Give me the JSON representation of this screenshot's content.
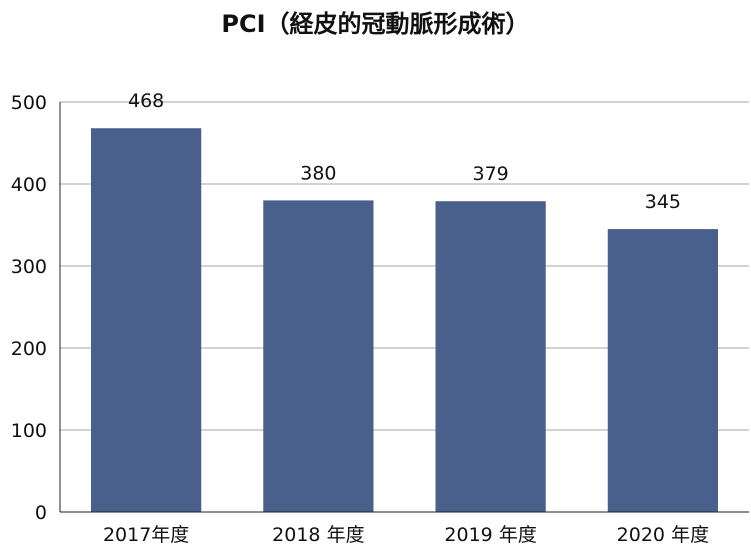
{
  "chart_data": {
    "type": "bar",
    "title": "PCI（経皮的冠動脈形成術）",
    "categories": [
      "2017年度",
      "2018 年度",
      "2019 年度",
      "2020 年度"
    ],
    "values": [
      468,
      380,
      379,
      345
    ],
    "ylim": [
      0,
      500
    ],
    "yticks": [
      0,
      100,
      200,
      300,
      400,
      500
    ],
    "grid": true,
    "xlabel": "",
    "ylabel": "",
    "colors": {
      "bar": "#4a608c",
      "grid": "#a6a6a6",
      "axis": "#222222"
    }
  }
}
